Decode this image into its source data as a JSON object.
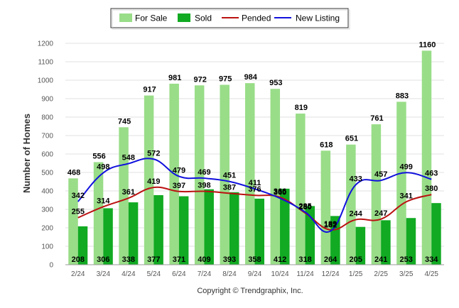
{
  "chart_data": {
    "type": "bar",
    "categories": [
      "2/24",
      "3/24",
      "4/24",
      "5/24",
      "6/24",
      "7/24",
      "8/24",
      "9/24",
      "10/24",
      "11/24",
      "12/24",
      "1/25",
      "2/25",
      "3/25",
      "4/25"
    ],
    "series": [
      {
        "name": "For Sale",
        "type": "bar",
        "color": "#99dd88",
        "values": [
          468,
          556,
          745,
          917,
          981,
          972,
          975,
          984,
          953,
          819,
          618,
          651,
          761,
          883,
          1160
        ]
      },
      {
        "name": "Sold",
        "type": "bar",
        "color": "#11aa22",
        "values": [
          208,
          306,
          338,
          377,
          371,
          409,
          393,
          358,
          412,
          318,
          264,
          205,
          241,
          253,
          334
        ]
      },
      {
        "name": "Pended",
        "type": "line",
        "color": "#bb1111",
        "values": [
          255,
          314,
          361,
          419,
          397,
          398,
          387,
          376,
          366,
          280,
          189,
          244,
          247,
          341,
          380
        ]
      },
      {
        "name": "New Listing",
        "type": "line",
        "color": "#1111dd",
        "values": [
          342,
          498,
          548,
          572,
          479,
          469,
          451,
          411,
          360,
          285,
          182,
          433,
          457,
          499,
          463
        ]
      }
    ],
    "xlabel": "",
    "ylabel": "Number of Homes",
    "ylim": [
      0,
      1200
    ],
    "yticks": [
      0,
      100,
      200,
      300,
      400,
      500,
      600,
      700,
      800,
      900,
      1000,
      1100,
      1200
    ],
    "grid": true,
    "legend_position": "top-center"
  },
  "copyright": "Copyright © Trendgraphix, Inc."
}
